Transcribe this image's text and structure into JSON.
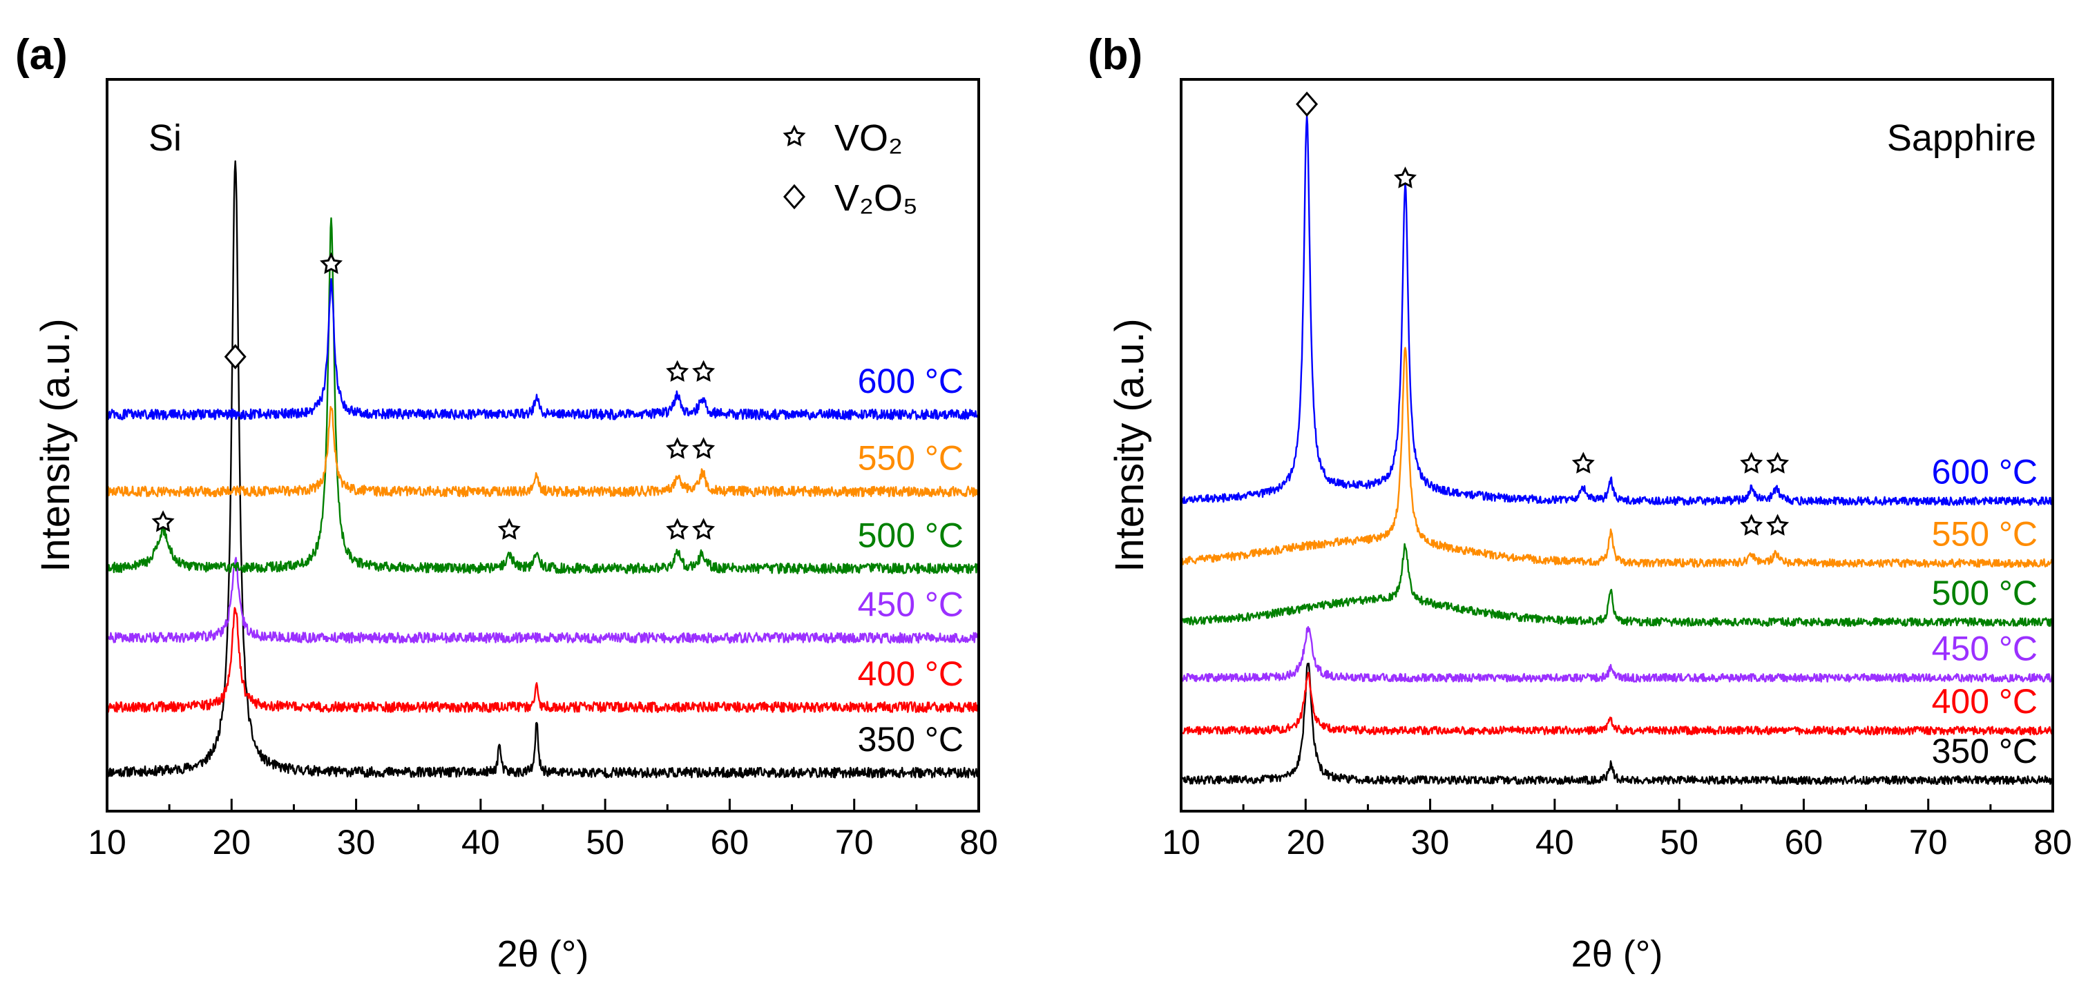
{
  "chart_data": [
    {
      "panel_label": "(a)",
      "type": "line",
      "substrate": "Si",
      "xlabel": "2θ (°)",
      "ylabel": "Intensity (a.u.)",
      "xlim": [
        10,
        80
      ],
      "x_ticks": [
        "10",
        "20",
        "30",
        "40",
        "50",
        "60",
        "70",
        "80"
      ],
      "legend": [
        {
          "marker": "star",
          "label": "VO₂"
        },
        {
          "marker": "diamond",
          "label": "V₂O₅"
        }
      ],
      "series": [
        {
          "name": "350 °C",
          "color": "#000000",
          "baseline": 0.5,
          "peaks": [
            {
              "x": 20.3,
              "h": 8.0,
              "w": 0.35
            },
            {
              "x": 44.5,
              "h": 0.7,
              "w": 0.12
            },
            {
              "x": 41.5,
              "h": 0.4,
              "w": 0.12
            }
          ]
        },
        {
          "name": "400 °C",
          "color": "#ff0000",
          "baseline": 1.35,
          "peaks": [
            {
              "x": 20.3,
              "h": 1.3,
              "w": 0.35
            },
            {
              "x": 44.5,
              "h": 0.3,
              "w": 0.12
            }
          ]
        },
        {
          "name": "450 °C",
          "color": "#9b30ff",
          "baseline": 2.25,
          "peaks": [
            {
              "x": 20.3,
              "h": 1.0,
              "w": 0.35
            }
          ]
        },
        {
          "name": "500 °C",
          "color": "#008000",
          "baseline": 3.15,
          "peaks": [
            {
              "x": 28.0,
              "h": 4.5,
              "w": 0.3
            },
            {
              "x": 14.5,
              "h": 0.5,
              "w": 0.6
            },
            {
              "x": 42.3,
              "h": 0.2,
              "w": 0.3
            },
            {
              "x": 44.5,
              "h": 0.25,
              "w": 0.2
            },
            {
              "x": 55.8,
              "h": 0.2,
              "w": 0.3
            },
            {
              "x": 57.8,
              "h": 0.2,
              "w": 0.3
            }
          ]
        },
        {
          "name": "550 °C",
          "color": "#ff8c00",
          "baseline": 4.15,
          "peaks": [
            {
              "x": 28.0,
              "h": 1.1,
              "w": 0.3
            },
            {
              "x": 55.8,
              "h": 0.2,
              "w": 0.3
            },
            {
              "x": 57.8,
              "h": 0.25,
              "w": 0.3
            },
            {
              "x": 44.5,
              "h": 0.2,
              "w": 0.2
            }
          ]
        },
        {
          "name": "600 °C",
          "color": "#0000ff",
          "baseline": 5.15,
          "peaks": [
            {
              "x": 28.0,
              "h": 1.7,
              "w": 0.3
            },
            {
              "x": 44.5,
              "h": 0.25,
              "w": 0.2
            },
            {
              "x": 55.8,
              "h": 0.25,
              "w": 0.3
            },
            {
              "x": 57.8,
              "h": 0.2,
              "w": 0.3
            }
          ]
        }
      ],
      "annotations": [
        {
          "marker": "diamond",
          "x": 20.3,
          "y": 5.9
        },
        {
          "marker": "star",
          "x": 28.0,
          "y": 7.1
        },
        {
          "marker": "star",
          "x": 55.8,
          "y": 5.7
        },
        {
          "marker": "star",
          "x": 57.9,
          "y": 5.7
        },
        {
          "marker": "star",
          "x": 55.8,
          "y": 4.7
        },
        {
          "marker": "star",
          "x": 57.9,
          "y": 4.7
        },
        {
          "marker": "star",
          "x": 14.5,
          "y": 3.75
        },
        {
          "marker": "star",
          "x": 42.3,
          "y": 3.65
        },
        {
          "marker": "star",
          "x": 55.8,
          "y": 3.65
        },
        {
          "marker": "star",
          "x": 57.9,
          "y": 3.65
        }
      ]
    },
    {
      "panel_label": "(b)",
      "type": "line",
      "substrate": "Sapphire",
      "xlabel": "2θ (°)",
      "ylabel": "Intensity (a.u.)",
      "xlim": [
        10,
        80
      ],
      "x_ticks": [
        "10",
        "20",
        "30",
        "40",
        "50",
        "60",
        "70",
        "80"
      ],
      "series": [
        {
          "name": "350 °C",
          "color": "#000000",
          "baseline": 0.5,
          "peaks": [
            {
              "x": 20.2,
              "h": 1.9,
              "w": 0.35
            },
            {
              "x": 44.5,
              "h": 0.25,
              "w": 0.2
            }
          ]
        },
        {
          "name": "400 °C",
          "color": "#ff0000",
          "baseline": 1.3,
          "peaks": [
            {
              "x": 20.2,
              "h": 0.9,
              "w": 0.35
            },
            {
              "x": 44.5,
              "h": 0.2,
              "w": 0.2
            }
          ]
        },
        {
          "name": "450 °C",
          "color": "#9b30ff",
          "baseline": 2.15,
          "peaks": [
            {
              "x": 20.2,
              "h": 0.8,
              "w": 0.4
            },
            {
              "x": 44.5,
              "h": 0.15,
              "w": 0.2
            }
          ]
        },
        {
          "name": "500 °C",
          "color": "#008000",
          "baseline": 3.05,
          "hump": {
            "x": 26,
            "h": 0.35,
            "w": 9
          },
          "peaks": [
            {
              "x": 28.0,
              "h": 0.9,
              "w": 0.3
            },
            {
              "x": 44.5,
              "h": 0.5,
              "w": 0.2
            }
          ]
        },
        {
          "name": "550 °C",
          "color": "#ff8c00",
          "baseline": 4.0,
          "hump": {
            "x": 25,
            "h": 0.35,
            "w": 10
          },
          "peaks": [
            {
              "x": 28.0,
              "h": 3.2,
              "w": 0.3
            },
            {
              "x": 44.5,
              "h": 0.5,
              "w": 0.2
            },
            {
              "x": 55.8,
              "h": 0.15,
              "w": 0.3
            },
            {
              "x": 57.8,
              "h": 0.15,
              "w": 0.3
            }
          ]
        },
        {
          "name": "600 °C",
          "color": "#0000ff",
          "baseline": 5.0,
          "hump": {
            "x": 25,
            "h": 0.2,
            "w": 9
          },
          "peaks": [
            {
              "x": 20.1,
              "h": 6.1,
              "w": 0.3
            },
            {
              "x": 28.0,
              "h": 4.9,
              "w": 0.3
            },
            {
              "x": 42.3,
              "h": 0.2,
              "w": 0.3
            },
            {
              "x": 44.5,
              "h": 0.35,
              "w": 0.2
            },
            {
              "x": 55.8,
              "h": 0.2,
              "w": 0.3
            },
            {
              "x": 57.8,
              "h": 0.2,
              "w": 0.3
            }
          ]
        }
      ],
      "annotations": [
        {
          "marker": "diamond",
          "x": 20.1,
          "y": 11.4
        },
        {
          "marker": "star",
          "x": 28.0,
          "y": 10.2
        },
        {
          "marker": "star",
          "x": 42.3,
          "y": 5.6
        },
        {
          "marker": "star",
          "x": 55.8,
          "y": 5.6
        },
        {
          "marker": "star",
          "x": 57.9,
          "y": 5.6
        },
        {
          "marker": "star",
          "x": 55.8,
          "y": 4.6
        },
        {
          "marker": "star",
          "x": 57.9,
          "y": 4.6
        }
      ]
    }
  ]
}
